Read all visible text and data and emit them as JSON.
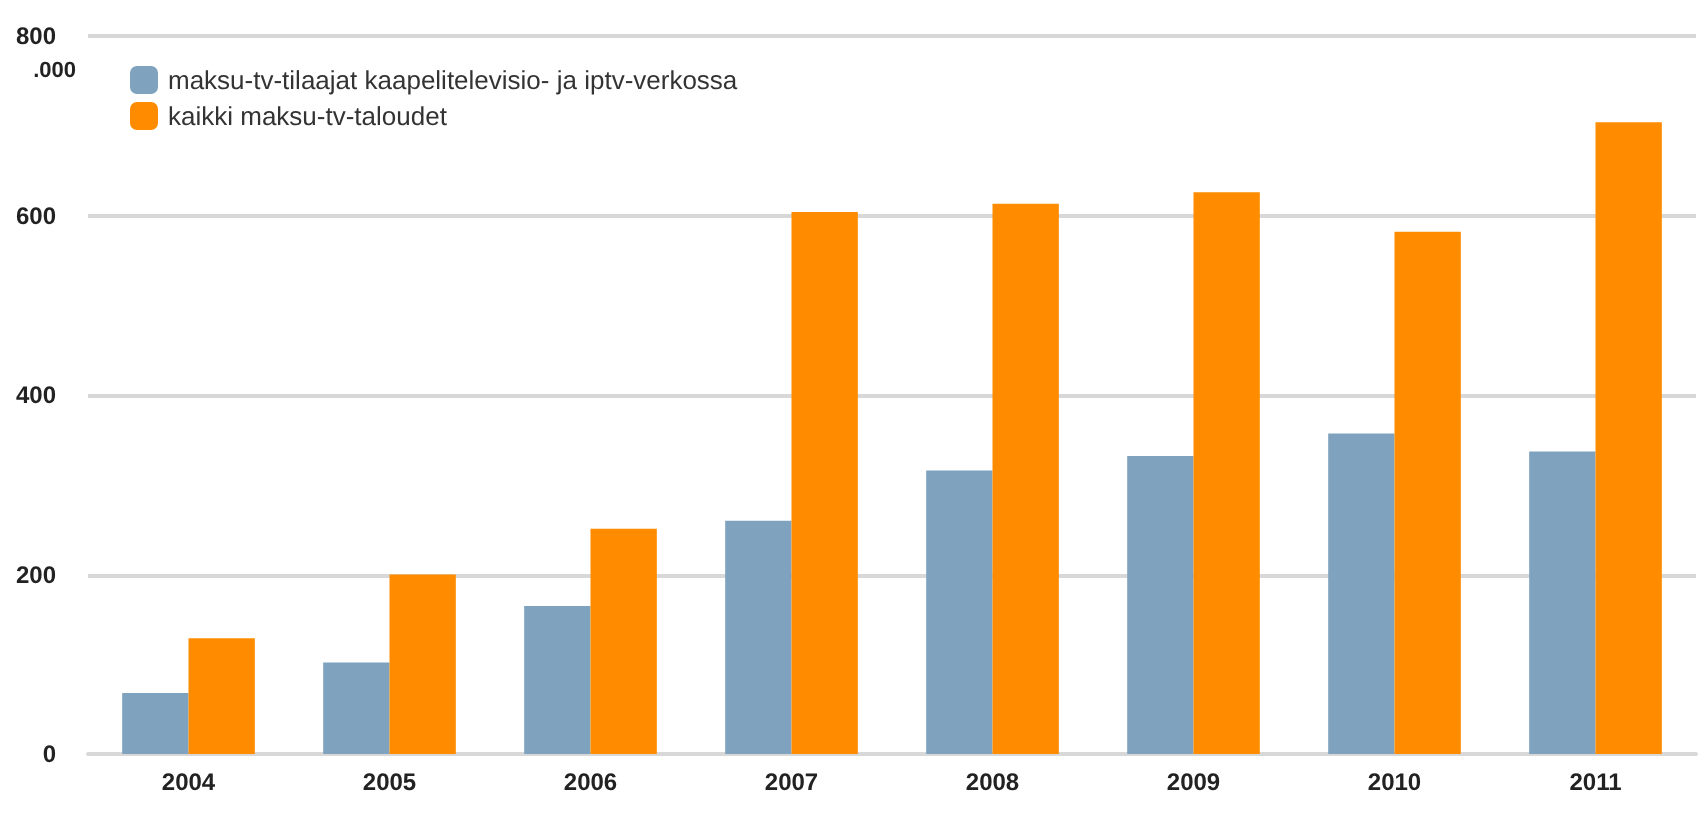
{
  "chart_data": {
    "type": "bar",
    "ylabel": ".000",
    "categories": [
      "2004",
      "2005",
      "2006",
      "2007",
      "2008",
      "2009",
      "2010",
      "2011"
    ],
    "series": [
      {
        "name": "maksu-tv-tilaajat kaapelitelevisio- ja iptv-verkossa",
        "color": "#7fa3bf",
        "values": [
          68,
          102,
          165,
          260,
          316,
          332,
          357,
          337
        ]
      },
      {
        "name": "kaikki maksu-tv-taloudet",
        "color": "#ff8c00",
        "values": [
          129,
          200,
          251,
          604,
          613,
          626,
          582,
          704
        ]
      }
    ],
    "ylim": [
      0,
      800
    ],
    "yticks": [
      0,
      200,
      400,
      600,
      800
    ],
    "grid": "y",
    "legend": "top left"
  }
}
